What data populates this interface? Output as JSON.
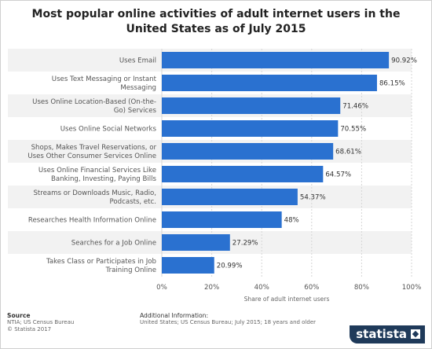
{
  "chart_data": {
    "type": "bar",
    "orientation": "horizontal",
    "title": "Most popular online activities of adult internet users in the United States as of July 2015",
    "xlabel": "Share of adult internet users",
    "ylabel": "",
    "xlim": [
      0,
      100
    ],
    "ticks": [
      "0%",
      "20%",
      "40%",
      "60%",
      "80%",
      "100%"
    ],
    "tick_values": [
      0,
      20,
      40,
      60,
      80,
      100
    ],
    "grid": true,
    "bar_color": "#2a71d0",
    "categories": [
      [
        "Uses Email"
      ],
      [
        "Uses Text Messaging or Instant",
        "Messaging"
      ],
      [
        "Uses Online Location-Based (On-the-",
        "Go) Services"
      ],
      [
        "Uses Online Social Networks"
      ],
      [
        "Shops, Makes Travel Reservations, or",
        "Uses Other Consumer Services Online"
      ],
      [
        "Uses Online Financial Services Like",
        "Banking, Investing, Paying Bills"
      ],
      [
        "Streams or Downloads Music, Radio,",
        "Podcasts, etc."
      ],
      [
        "Researches Health Information Online"
      ],
      [
        "Searches for a Job Online"
      ],
      [
        "Takes Class or Participates in Job",
        "Training Online"
      ]
    ],
    "values": [
      90.92,
      86.15,
      71.46,
      70.55,
      68.61,
      64.57,
      54.37,
      48,
      27.29,
      20.99
    ],
    "value_labels": [
      "90.92%",
      "86.15%",
      "71.46%",
      "70.55%",
      "68.61%",
      "64.57%",
      "54.37%",
      "48%",
      "27.29%",
      "20.99%"
    ]
  },
  "footer": {
    "source_heading": "Source",
    "source_line1": "NTIA; US Census Bureau",
    "source_line2": "© Statista 2017",
    "info_heading": "Additional Information:",
    "info_line1": "United States; US Census Bureau; July 2015; 18 years and older"
  },
  "brand": {
    "logo_text": "statista"
  }
}
